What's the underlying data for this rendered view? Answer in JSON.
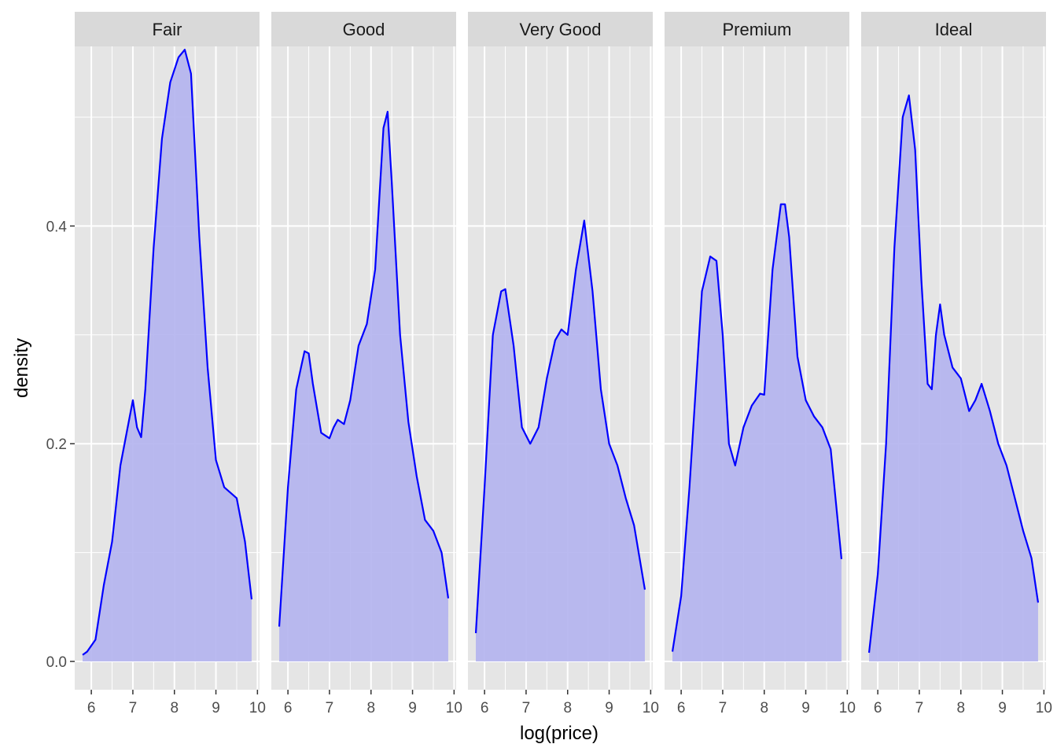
{
  "colors": {
    "panel_bg": "#e5e5e5",
    "strip_bg": "#d9d9d9",
    "grid": "#ffffff",
    "line": "#0000ff",
    "fill": "#b3b3ee"
  },
  "chart_data": {
    "type": "area",
    "xlabel": "log(price)",
    "ylabel": "density",
    "xlim": [
      5.6,
      10.05
    ],
    "ylim": [
      -0.026,
      0.565
    ],
    "x_ticks": [
      6,
      7,
      8,
      9,
      10
    ],
    "x_tick_labels": [
      "6",
      "7",
      "8",
      "9",
      "10"
    ],
    "y_ticks": [
      0.0,
      0.2,
      0.4
    ],
    "y_tick_labels": [
      "0.0",
      "0.2",
      "0.4"
    ],
    "grid": true,
    "facets": [
      {
        "label": "Fair",
        "x": [
          5.79,
          5.9,
          6.1,
          6.3,
          6.5,
          6.7,
          6.9,
          7.0,
          7.1,
          7.2,
          7.3,
          7.5,
          7.7,
          7.9,
          8.1,
          8.25,
          8.4,
          8.6,
          8.8,
          9.0,
          9.2,
          9.5,
          9.7,
          9.86
        ],
        "values": [
          0.006,
          0.009,
          0.02,
          0.07,
          0.11,
          0.18,
          0.22,
          0.24,
          0.215,
          0.206,
          0.25,
          0.38,
          0.48,
          0.532,
          0.555,
          0.562,
          0.54,
          0.39,
          0.27,
          0.185,
          0.16,
          0.15,
          0.11,
          0.057
        ]
      },
      {
        "label": "Good",
        "x": [
          5.79,
          6.0,
          6.2,
          6.4,
          6.5,
          6.6,
          6.8,
          7.0,
          7.1,
          7.2,
          7.35,
          7.5,
          7.7,
          7.9,
          8.1,
          8.3,
          8.4,
          8.5,
          8.7,
          8.9,
          9.1,
          9.3,
          9.5,
          9.7,
          9.86
        ],
        "values": [
          0.032,
          0.16,
          0.25,
          0.285,
          0.283,
          0.255,
          0.21,
          0.205,
          0.215,
          0.222,
          0.218,
          0.24,
          0.29,
          0.31,
          0.36,
          0.49,
          0.505,
          0.44,
          0.3,
          0.22,
          0.17,
          0.13,
          0.12,
          0.1,
          0.058
        ]
      },
      {
        "label": "Very Good",
        "x": [
          5.79,
          6.0,
          6.2,
          6.4,
          6.5,
          6.7,
          6.9,
          7.1,
          7.3,
          7.5,
          7.7,
          7.85,
          8.0,
          8.2,
          8.4,
          8.6,
          8.8,
          9.0,
          9.2,
          9.4,
          9.6,
          9.86
        ],
        "values": [
          0.026,
          0.16,
          0.3,
          0.34,
          0.342,
          0.29,
          0.215,
          0.2,
          0.215,
          0.26,
          0.295,
          0.305,
          0.3,
          0.36,
          0.405,
          0.34,
          0.25,
          0.2,
          0.18,
          0.15,
          0.125,
          0.066
        ]
      },
      {
        "label": "Premium",
        "x": [
          5.79,
          6.0,
          6.2,
          6.5,
          6.7,
          6.85,
          7.0,
          7.15,
          7.3,
          7.5,
          7.7,
          7.9,
          8.0,
          8.2,
          8.4,
          8.5,
          8.6,
          8.8,
          9.0,
          9.2,
          9.4,
          9.6,
          9.86
        ],
        "values": [
          0.009,
          0.06,
          0.16,
          0.34,
          0.372,
          0.368,
          0.3,
          0.2,
          0.18,
          0.215,
          0.235,
          0.246,
          0.245,
          0.36,
          0.42,
          0.42,
          0.39,
          0.28,
          0.24,
          0.225,
          0.215,
          0.195,
          0.094
        ]
      },
      {
        "label": "Ideal",
        "x": [
          5.79,
          6.0,
          6.2,
          6.4,
          6.6,
          6.75,
          6.9,
          7.05,
          7.2,
          7.3,
          7.4,
          7.5,
          7.6,
          7.8,
          8.0,
          8.2,
          8.35,
          8.5,
          8.7,
          8.9,
          9.1,
          9.3,
          9.5,
          9.7,
          9.86
        ],
        "values": [
          0.008,
          0.08,
          0.2,
          0.38,
          0.5,
          0.52,
          0.47,
          0.35,
          0.255,
          0.25,
          0.3,
          0.328,
          0.3,
          0.27,
          0.26,
          0.23,
          0.24,
          0.255,
          0.23,
          0.2,
          0.18,
          0.15,
          0.12,
          0.095,
          0.054
        ]
      }
    ]
  }
}
